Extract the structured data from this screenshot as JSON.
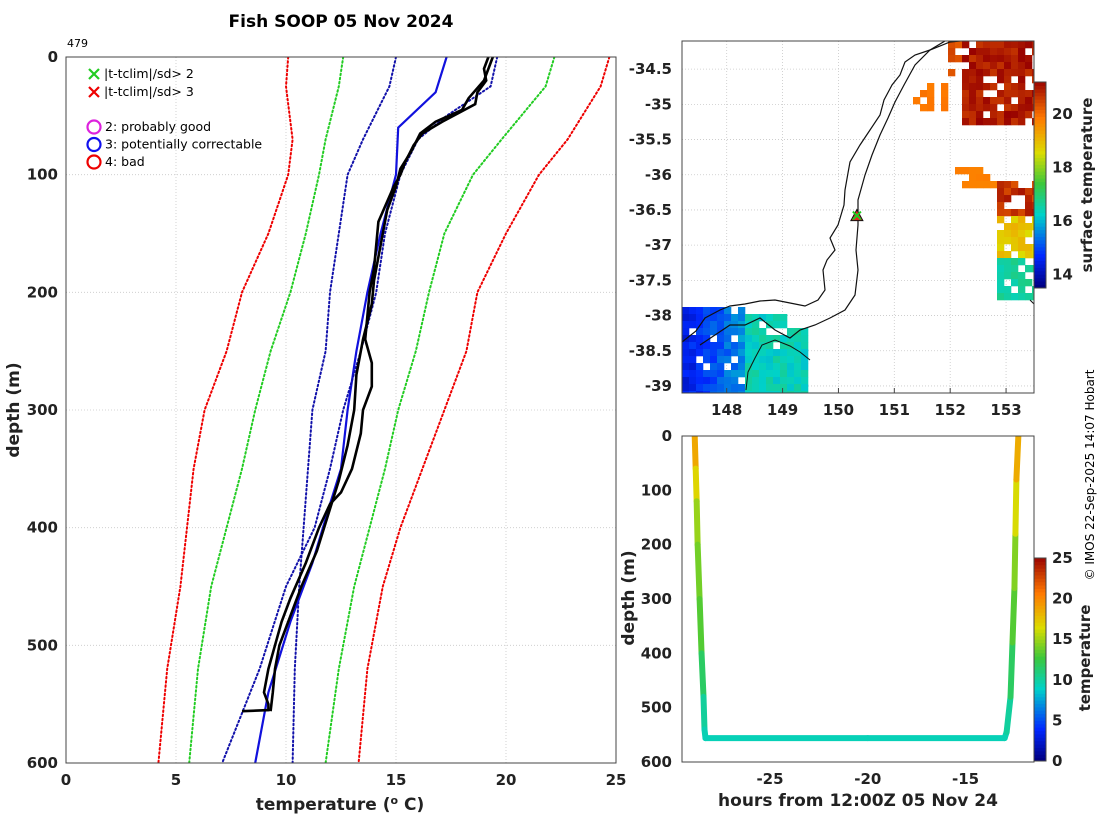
{
  "figure": {
    "title": "Fish SOOP 05 Nov 2024",
    "profile_id": "479",
    "credit": "© IMOS 22-Sep-2025 14:07 Hobart"
  },
  "legend": {
    "criteria": [
      {
        "marker": "x",
        "color": "#22cc22",
        "label": "|t-tclim|/sd> 2"
      },
      {
        "marker": "x",
        "color": "#ee0000",
        "label": "|t-tclim|/sd> 3"
      }
    ],
    "flags": [
      {
        "marker": "circle",
        "color": "#dd22dd",
        "label": "2: probably good"
      },
      {
        "marker": "circle",
        "color": "#1111ee",
        "label": "3: potentially correctable"
      },
      {
        "marker": "circle",
        "color": "#ee0000",
        "label": "4: bad"
      }
    ]
  },
  "chart_data": [
    {
      "type": "line",
      "name": "temperature profile",
      "xlabel": "temperature (o C)",
      "ylabel": "depth (m)",
      "xlim": [
        0,
        25
      ],
      "ylim": [
        0,
        600
      ],
      "y_reversed": true,
      "xticks": [
        0,
        5,
        10,
        15,
        20,
        25
      ],
      "yticks": [
        0,
        100,
        200,
        300,
        400,
        500,
        600
      ],
      "grid": true,
      "series": [
        {
          "name": "climatology +3sd",
          "color": "#ee0000",
          "style": "dotted",
          "x": [
            24.7,
            24.3,
            22.8,
            21.5,
            20.0,
            18.7,
            18.2,
            17.2,
            16.2,
            15.2,
            14.4,
            13.7,
            13.3
          ],
          "y": [
            0,
            25,
            70,
            100,
            150,
            200,
            250,
            300,
            350,
            400,
            450,
            520,
            600
          ]
        },
        {
          "name": "climatology +2sd",
          "color": "#22cc22",
          "style": "dotted",
          "x": [
            22.2,
            21.8,
            19.8,
            18.5,
            17.2,
            16.5,
            15.9,
            15.1,
            14.5,
            13.8,
            13.1,
            12.4,
            11.8
          ],
          "y": [
            0,
            25,
            70,
            100,
            150,
            200,
            250,
            300,
            350,
            400,
            450,
            520,
            600
          ]
        },
        {
          "name": "climatology +1sd",
          "color": "#1111aa",
          "style": "dotted",
          "x": [
            15.0,
            14.7,
            13.5,
            12.8,
            12.4,
            12.0,
            11.8,
            11.2,
            11.0,
            10.8,
            10.6,
            10.4,
            10.3
          ],
          "y": [
            0,
            25,
            70,
            100,
            150,
            200,
            250,
            300,
            350,
            400,
            450,
            520,
            600
          ]
        },
        {
          "name": "climatology mean",
          "color": "#1111dd",
          "style": "solid",
          "x": [
            17.3,
            16.8,
            15.1,
            15.0,
            14.3,
            13.7,
            13.2,
            12.8,
            12.5,
            12.0,
            11.2,
            10.2,
            9.2,
            8.6
          ],
          "y": [
            0,
            30,
            60,
            100,
            150,
            200,
            250,
            300,
            350,
            380,
            430,
            480,
            540,
            600
          ]
        },
        {
          "name": "climatology -1sd",
          "color": "#1111aa",
          "style": "dotted",
          "x": [
            19.6,
            19.3,
            17.3,
            16.0,
            15.2,
            14.5,
            14.1,
            13.4,
            12.6,
            12.0,
            11.3,
            10.0,
            8.8,
            7.1
          ],
          "y": [
            0,
            25,
            50,
            70,
            100,
            150,
            200,
            250,
            300,
            350,
            400,
            450,
            520,
            600
          ]
        },
        {
          "name": "climatology -2sd",
          "color": "#22cc22",
          "style": "dotted",
          "x": [
            12.6,
            12.4,
            11.8,
            11.5,
            10.9,
            10.2,
            9.3,
            8.6,
            8.0,
            7.3,
            6.6,
            6.0,
            5.6
          ],
          "y": [
            0,
            25,
            70,
            100,
            150,
            200,
            250,
            300,
            350,
            400,
            450,
            520,
            600
          ]
        },
        {
          "name": "climatology -3sd",
          "color": "#ee0000",
          "style": "dotted",
          "x": [
            10.1,
            10.0,
            10.3,
            10.1,
            9.2,
            8.0,
            7.3,
            6.3,
            5.8,
            5.2,
            4.6,
            4.2
          ],
          "y": [
            0,
            25,
            70,
            100,
            150,
            200,
            250,
            300,
            350,
            450,
            520,
            600
          ]
        },
        {
          "name": "observed profile (down)",
          "color": "#000000",
          "style": "solid",
          "x": [
            19.2,
            19.0,
            19.1,
            18.7,
            18.6,
            17.1,
            16.2,
            15.8,
            15.4,
            15.2,
            14.9,
            14.2,
            14.1,
            14.0,
            13.8,
            13.7,
            13.6,
            13.9,
            13.9,
            13.5,
            13.4,
            13.0,
            12.5,
            12.0,
            11.5,
            10.9,
            10.2,
            9.8,
            9.5,
            9.2,
            9.0,
            9.2,
            9.2,
            8.0
          ],
          "y": [
            0,
            10,
            20,
            30,
            40,
            55,
            65,
            75,
            90,
            100,
            110,
            140,
            160,
            180,
            200,
            220,
            240,
            260,
            280,
            300,
            320,
            350,
            370,
            380,
            400,
            430,
            460,
            480,
            500,
            520,
            540,
            550,
            555,
            556
          ]
        },
        {
          "name": "observed profile (up)",
          "color": "#000000",
          "style": "solid",
          "x": [
            19.4,
            19.2,
            19.0,
            18.3,
            18.0,
            16.8,
            16.1,
            15.7,
            15.2,
            15.0,
            14.6,
            14.4,
            14.2,
            14.0,
            13.9,
            13.5,
            13.2,
            13.1,
            12.8,
            12.4,
            11.9,
            11.4,
            10.7,
            10.1,
            9.7,
            9.5,
            9.4,
            9.3
          ],
          "y": [
            0,
            10,
            20,
            35,
            45,
            55,
            65,
            80,
            95,
            110,
            130,
            150,
            170,
            190,
            210,
            240,
            270,
            300,
            330,
            360,
            390,
            420,
            450,
            480,
            500,
            520,
            540,
            556
          ]
        }
      ]
    },
    {
      "type": "heatmap",
      "name": "surface temperature map",
      "xlim": [
        147.2,
        153.5
      ],
      "ylim": [
        -39.1,
        -34.1
      ],
      "xticks": [
        148,
        149,
        150,
        151,
        152,
        153
      ],
      "yticks": [
        -34.5,
        -35,
        -35.5,
        -36,
        -36.5,
        -37,
        -37.5,
        -38,
        -38.5,
        -39
      ],
      "colorbar": {
        "label": "surface temperature",
        "range": [
          13.5,
          21.2
        ],
        "ticks": [
          14,
          16,
          18,
          20
        ]
      },
      "station": {
        "lon": 150.33,
        "lat": -36.58
      }
    },
    {
      "type": "scatter",
      "name": "depth-time trace",
      "xlabel": "hours from 12:00Z 05 Nov 24",
      "ylabel": "depth (m)",
      "xlim": [
        -29.5,
        -11.5
      ],
      "ylim": [
        0,
        600
      ],
      "y_reversed": true,
      "xticks": [
        -25,
        -20,
        -15
      ],
      "yticks": [
        0,
        100,
        200,
        300,
        400,
        500,
        600
      ],
      "colorbar": {
        "label": "temperature",
        "range": [
          0,
          25
        ],
        "ticks": [
          0,
          5,
          10,
          15,
          20,
          25
        ]
      },
      "x": [
        -28.85,
        -28.8,
        -28.75,
        -28.7,
        -28.6,
        -28.5,
        -28.4,
        -28.35,
        -28.3,
        -20.0,
        -13.0,
        -12.9,
        -12.7,
        -12.6,
        -12.5,
        -12.45,
        -12.4,
        -12.3
      ],
      "y": [
        0,
        60,
        120,
        200,
        300,
        400,
        480,
        540,
        556,
        556,
        556,
        545,
        480,
        380,
        280,
        180,
        80,
        0
      ],
      "temperature": [
        19.2,
        17.8,
        15.3,
        14.0,
        13.6,
        12.5,
        10.4,
        9.5,
        9.2,
        9.2,
        9.2,
        9.4,
        10.4,
        12.6,
        13.5,
        14.8,
        17.5,
        19.2
      ]
    }
  ]
}
